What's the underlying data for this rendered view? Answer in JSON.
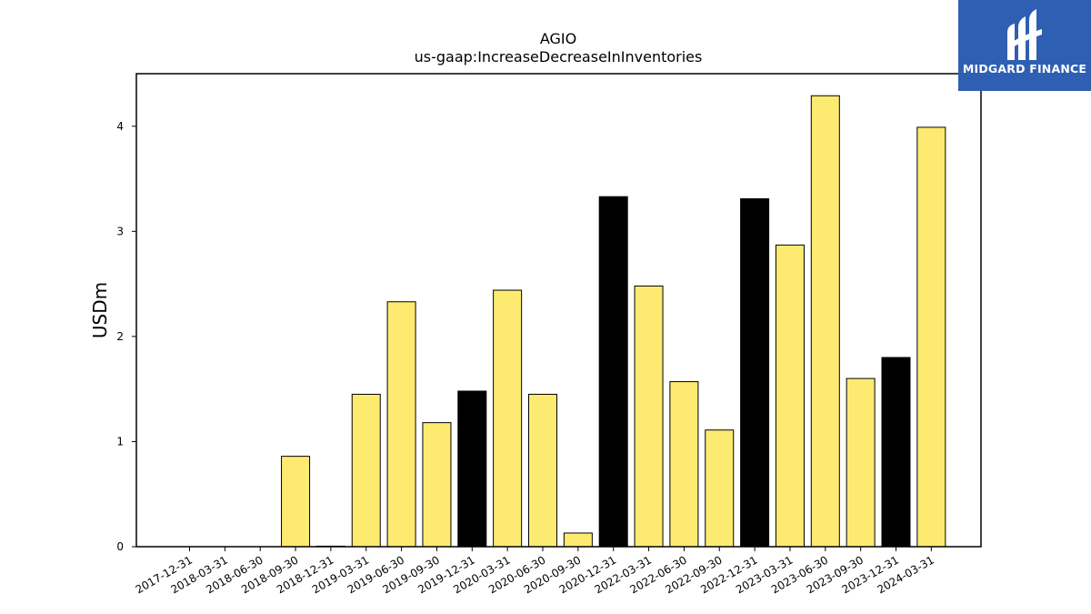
{
  "chart_data": {
    "type": "bar",
    "title": "AGIO",
    "subtitle": "us-gaap:IncreaseDecreaseInInventories",
    "xlabel": "",
    "ylabel": "USDm",
    "ylim": [
      0,
      4.5
    ],
    "yticks": [
      "0",
      "1",
      "2",
      "3",
      "4"
    ],
    "grid": false,
    "categories": [
      "2017-12-31",
      "2018-03-31",
      "2018-06-30",
      "2018-09-30",
      "2018-12-31",
      "2019-03-31",
      "2019-06-30",
      "2019-09-30",
      "2019-12-31",
      "2020-03-31",
      "2020-06-30",
      "2020-09-30",
      "2020-12-31",
      "2022-03-31",
      "2022-06-30",
      "2022-09-30",
      "2022-12-31",
      "2023-03-31",
      "2023-06-30",
      "2023-09-30",
      "2023-12-31",
      "2024-03-31"
    ],
    "values": [
      0,
      0,
      0,
      0.86,
      0.005,
      1.45,
      2.33,
      1.18,
      1.48,
      2.44,
      1.45,
      0.13,
      3.33,
      2.48,
      1.57,
      1.11,
      3.31,
      2.87,
      4.29,
      1.6,
      1.8,
      3.99
    ],
    "bar_colors": [
      "#fdeb71",
      "#fdeb71",
      "#fdeb71",
      "#fdeb71",
      "#fdeb71",
      "#fdeb71",
      "#fdeb71",
      "#fdeb71",
      "#000000",
      "#fdeb71",
      "#fdeb71",
      "#fdeb71",
      "#000000",
      "#fdeb71",
      "#fdeb71",
      "#fdeb71",
      "#000000",
      "#fdeb71",
      "#fdeb71",
      "#fdeb71",
      "#000000",
      "#fdeb71"
    ]
  },
  "logo": {
    "text": "MIDGARD FINANCE",
    "background": "#2f5fb3"
  }
}
